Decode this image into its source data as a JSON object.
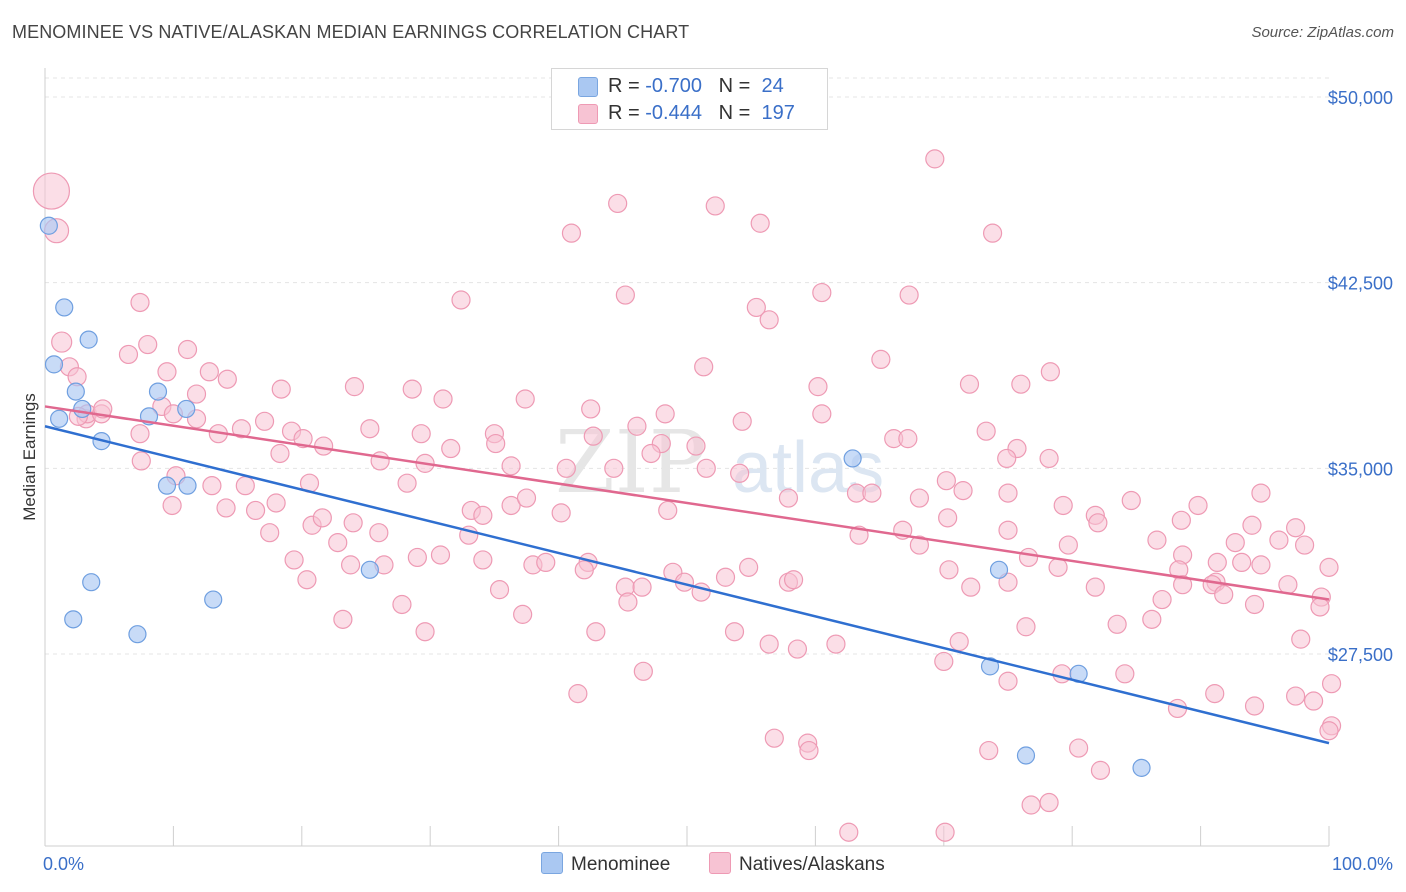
{
  "title": "MENOMINEE VS NATIVE/ALASKAN MEDIAN EARNINGS CORRELATION CHART",
  "source": "Source: ZipAtlas.com",
  "watermark": {
    "zip": "ZIP",
    "atlas": "atlas"
  },
  "stats": [
    {
      "r_label": "R =",
      "r_value": "-0.700",
      "n_label": "N =",
      "n_value": "24",
      "color": "#aac8f2",
      "border": "#7aa6e0"
    },
    {
      "r_label": "R =",
      "r_value": "-0.444",
      "n_label": "N =",
      "n_value": "197",
      "color": "#f7c3d3",
      "border": "#ee9ab4"
    }
  ],
  "legend": [
    {
      "label": "Menominee",
      "color": "#aac8f2",
      "border": "#7aa6e0"
    },
    {
      "label": "Natives/Alaskans",
      "color": "#f7c3d3",
      "border": "#ee9ab4"
    }
  ],
  "chart_data": {
    "type": "scatter",
    "ylabel": "Median Earnings",
    "xlabel": "",
    "xlim": [
      0,
      100
    ],
    "ylim": [
      20000,
      51000
    ],
    "x_tick_labels": [
      {
        "value": 0,
        "label": "0.0%"
      },
      {
        "value": 100,
        "label": "100.0%"
      }
    ],
    "y_ticks": [
      {
        "value": 27500,
        "label": "$27,500"
      },
      {
        "value": 35000,
        "label": "$35,000"
      },
      {
        "value": 42500,
        "label": "$42,500"
      },
      {
        "value": 50000,
        "label": "$50,000"
      }
    ],
    "grid": true,
    "colors": {
      "menominee_fill": "#aac8f2",
      "menominee_stroke": "#6f9fe0",
      "menominee_line": "#2f6fd0",
      "native_fill": "#f7c3d3",
      "native_stroke": "#ee9ab4",
      "native_line": "#e0688f",
      "tick_label": "#3a6fc8"
    },
    "series": [
      {
        "name": "Menominee",
        "trend": {
          "x": [
            0,
            100
          ],
          "y": [
            36700,
            23900
          ]
        },
        "points": [
          [
            0.3,
            44800
          ],
          [
            1.5,
            41500
          ],
          [
            0.7,
            39200
          ],
          [
            3.4,
            40200
          ],
          [
            2.4,
            38100
          ],
          [
            8.8,
            38100
          ],
          [
            1.1,
            37000
          ],
          [
            2.9,
            37400
          ],
          [
            8.1,
            37100
          ],
          [
            11.0,
            37400
          ],
          [
            4.4,
            36100
          ],
          [
            9.5,
            34300
          ],
          [
            11.1,
            34300
          ],
          [
            62.9,
            35400
          ],
          [
            3.6,
            30400
          ],
          [
            2.2,
            28900
          ],
          [
            7.2,
            28300
          ],
          [
            13.1,
            29700
          ],
          [
            25.3,
            30900
          ],
          [
            74.3,
            30900
          ],
          [
            73.6,
            27000
          ],
          [
            80.5,
            26700
          ],
          [
            76.4,
            23400
          ],
          [
            85.4,
            22900
          ]
        ]
      },
      {
        "name": "Natives/Alaskans",
        "trend": {
          "x": [
            0,
            100
          ],
          "y": [
            37500,
            29700
          ]
        },
        "points": [
          [
            0.5,
            46200
          ],
          [
            0.9,
            44600
          ],
          [
            69.3,
            47500
          ],
          [
            44.6,
            45700
          ],
          [
            52.2,
            45600
          ],
          [
            55.7,
            44900
          ],
          [
            41.0,
            44500
          ],
          [
            73.8,
            44500
          ],
          [
            7.4,
            41700
          ],
          [
            32.4,
            41800
          ],
          [
            45.2,
            42000
          ],
          [
            60.5,
            42100
          ],
          [
            67.3,
            42000
          ],
          [
            55.4,
            41500
          ],
          [
            56.4,
            41000
          ],
          [
            1.3,
            40100
          ],
          [
            6.5,
            39600
          ],
          [
            8.0,
            40000
          ],
          [
            9.5,
            38900
          ],
          [
            11.1,
            39800
          ],
          [
            1.9,
            39100
          ],
          [
            2.5,
            38700
          ],
          [
            3.2,
            37000
          ],
          [
            12.8,
            38900
          ],
          [
            14.2,
            38600
          ],
          [
            18.4,
            38200
          ],
          [
            24.1,
            38300
          ],
          [
            28.6,
            38200
          ],
          [
            31.0,
            37800
          ],
          [
            37.4,
            37800
          ],
          [
            42.5,
            37400
          ],
          [
            51.3,
            39100
          ],
          [
            65.1,
            39400
          ],
          [
            72.0,
            38400
          ],
          [
            78.3,
            38900
          ],
          [
            60.2,
            38300
          ],
          [
            3.3,
            37200
          ],
          [
            4.4,
            37200
          ],
          [
            7.4,
            36400
          ],
          [
            9.1,
            37500
          ],
          [
            10.0,
            37200
          ],
          [
            11.8,
            37000
          ],
          [
            13.5,
            36400
          ],
          [
            15.3,
            36600
          ],
          [
            17.1,
            36900
          ],
          [
            19.2,
            36500
          ],
          [
            20.1,
            36200
          ],
          [
            21.7,
            35900
          ],
          [
            25.3,
            36600
          ],
          [
            29.3,
            36400
          ],
          [
            35.0,
            36400
          ],
          [
            42.7,
            36300
          ],
          [
            46.1,
            36700
          ],
          [
            48.3,
            37200
          ],
          [
            48.0,
            36000
          ],
          [
            50.7,
            35900
          ],
          [
            54.3,
            36900
          ],
          [
            60.5,
            37200
          ],
          [
            66.1,
            36200
          ],
          [
            67.2,
            36200
          ],
          [
            73.3,
            36500
          ],
          [
            75.7,
            35800
          ],
          [
            76.0,
            38400
          ],
          [
            2.6,
            37100
          ],
          [
            7.5,
            35300
          ],
          [
            10.2,
            34700
          ],
          [
            13.0,
            34300
          ],
          [
            15.6,
            34300
          ],
          [
            18.3,
            35600
          ],
          [
            20.6,
            34400
          ],
          [
            26.1,
            35300
          ],
          [
            29.6,
            35200
          ],
          [
            31.6,
            35800
          ],
          [
            35.1,
            36000
          ],
          [
            36.3,
            35100
          ],
          [
            40.6,
            35000
          ],
          [
            44.3,
            35000
          ],
          [
            47.2,
            35600
          ],
          [
            51.5,
            35000
          ],
          [
            54.1,
            34800
          ],
          [
            63.2,
            34000
          ],
          [
            64.4,
            34000
          ],
          [
            70.2,
            34500
          ],
          [
            74.9,
            35400
          ],
          [
            75.0,
            34000
          ],
          [
            78.2,
            35400
          ],
          [
            9.9,
            33500
          ],
          [
            14.1,
            33400
          ],
          [
            18.0,
            33600
          ],
          [
            20.8,
            32700
          ],
          [
            24.0,
            32800
          ],
          [
            28.2,
            34400
          ],
          [
            33.2,
            33300
          ],
          [
            34.1,
            33100
          ],
          [
            36.3,
            33500
          ],
          [
            37.5,
            33800
          ],
          [
            40.2,
            33200
          ],
          [
            48.5,
            33300
          ],
          [
            57.9,
            33800
          ],
          [
            68.1,
            33800
          ],
          [
            71.5,
            34100
          ],
          [
            79.3,
            33500
          ],
          [
            81.8,
            33100
          ],
          [
            84.6,
            33700
          ],
          [
            88.5,
            32900
          ],
          [
            89.8,
            33500
          ],
          [
            94.7,
            34000
          ],
          [
            4.5,
            37400
          ],
          [
            11.8,
            38000
          ],
          [
            16.4,
            33300
          ],
          [
            17.5,
            32400
          ],
          [
            21.6,
            33000
          ],
          [
            22.8,
            32000
          ],
          [
            26.0,
            32400
          ],
          [
            30.8,
            31500
          ],
          [
            33.0,
            32300
          ],
          [
            34.1,
            31300
          ],
          [
            38.0,
            31100
          ],
          [
            42.3,
            31200
          ],
          [
            45.2,
            30200
          ],
          [
            46.5,
            30200
          ],
          [
            48.9,
            30800
          ],
          [
            53.0,
            30600
          ],
          [
            57.9,
            30400
          ],
          [
            63.4,
            32300
          ],
          [
            66.8,
            32500
          ],
          [
            68.1,
            31900
          ],
          [
            70.3,
            33000
          ],
          [
            75.0,
            32500
          ],
          [
            76.6,
            31400
          ],
          [
            79.7,
            31900
          ],
          [
            82.0,
            32800
          ],
          [
            86.6,
            32100
          ],
          [
            88.6,
            31500
          ],
          [
            91.3,
            31200
          ],
          [
            92.7,
            32000
          ],
          [
            94.0,
            32700
          ],
          [
            96.1,
            32100
          ],
          [
            97.4,
            32600
          ],
          [
            98.1,
            31900
          ],
          [
            100.0,
            31000
          ],
          [
            19.4,
            31300
          ],
          [
            20.4,
            30500
          ],
          [
            23.8,
            31100
          ],
          [
            26.4,
            31100
          ],
          [
            29.0,
            31400
          ],
          [
            35.4,
            30100
          ],
          [
            39.0,
            31200
          ],
          [
            42.0,
            30900
          ],
          [
            49.8,
            30400
          ],
          [
            54.8,
            31000
          ],
          [
            58.3,
            30500
          ],
          [
            70.4,
            30900
          ],
          [
            72.1,
            30200
          ],
          [
            75.0,
            30400
          ],
          [
            78.9,
            31000
          ],
          [
            81.8,
            30200
          ],
          [
            88.3,
            30900
          ],
          [
            91.2,
            30400
          ],
          [
            93.2,
            31200
          ],
          [
            94.7,
            31100
          ],
          [
            96.8,
            30300
          ],
          [
            99.4,
            29800
          ],
          [
            23.2,
            28900
          ],
          [
            27.8,
            29500
          ],
          [
            29.6,
            28400
          ],
          [
            37.2,
            29100
          ],
          [
            42.9,
            28400
          ],
          [
            45.4,
            29600
          ],
          [
            51.1,
            30000
          ],
          [
            53.7,
            28400
          ],
          [
            61.6,
            27900
          ],
          [
            71.2,
            28000
          ],
          [
            76.4,
            28600
          ],
          [
            83.5,
            28700
          ],
          [
            86.2,
            28900
          ],
          [
            87.0,
            29700
          ],
          [
            88.6,
            30300
          ],
          [
            90.9,
            30300
          ],
          [
            91.8,
            29900
          ],
          [
            94.2,
            29500
          ],
          [
            97.8,
            28100
          ],
          [
            99.3,
            29400
          ],
          [
            56.4,
            27900
          ],
          [
            58.6,
            27700
          ],
          [
            41.5,
            25900
          ],
          [
            46.6,
            26800
          ],
          [
            70.0,
            27200
          ],
          [
            75.0,
            26400
          ],
          [
            79.2,
            26700
          ],
          [
            84.1,
            26700
          ],
          [
            88.2,
            25300
          ],
          [
            91.1,
            25900
          ],
          [
            94.2,
            25400
          ],
          [
            97.4,
            25800
          ],
          [
            98.8,
            25600
          ],
          [
            100.2,
            24600
          ],
          [
            100.0,
            24400
          ],
          [
            59.4,
            23900
          ],
          [
            59.5,
            23600
          ],
          [
            73.5,
            23600
          ],
          [
            80.5,
            23700
          ],
          [
            82.2,
            22800
          ],
          [
            76.8,
            21400
          ],
          [
            78.2,
            21500
          ],
          [
            62.6,
            20300
          ],
          [
            70.1,
            20300
          ],
          [
            100.2,
            26300
          ],
          [
            56.8,
            24100
          ]
        ]
      }
    ]
  }
}
